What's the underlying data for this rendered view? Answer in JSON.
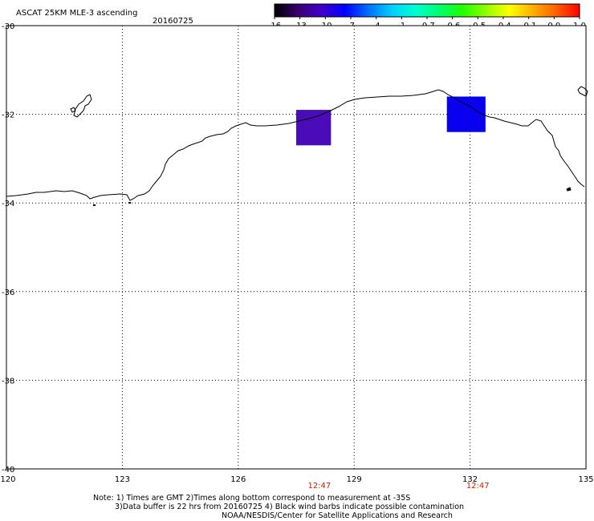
{
  "header": {
    "title": "ASCAT 25KM MLE-3 ascending",
    "date": "20160725"
  },
  "colorbar": {
    "labels": [
      "-16",
      "-13",
      "-10",
      "-7",
      "-4",
      "-1",
      "-0.7",
      "-0.6",
      "-0.5",
      "-0.4",
      "-0.1",
      "0.0",
      "1.0"
    ],
    "stops": [
      "#000000",
      "#3a0070",
      "#4000c8",
      "#0000ff",
      "#0070ff",
      "#00d0ff",
      "#00ffd0",
      "#00ff70",
      "#20ff00",
      "#90ff00",
      "#ffff00",
      "#ffb000",
      "#ff6000",
      "#ff0000"
    ]
  },
  "lat_labels": [
    "-30",
    "-32",
    "-34",
    "-36",
    "-38",
    "-40"
  ],
  "lon_labels": [
    "120",
    "123",
    "126",
    "129",
    "132",
    "135"
  ],
  "times": [
    {
      "label": "12:47",
      "lon": 128.1
    },
    {
      "label": "12:47",
      "lon": 132.2
    }
  ],
  "swath_cells": [
    {
      "lon_min": 127.5,
      "lon_max": 128.4,
      "lat_min": -32.7,
      "lat_max": -31.9,
      "color": "#4a0cb8",
      "value_range": "-13 to -10"
    },
    {
      "lon_min": 131.4,
      "lon_max": 132.4,
      "lat_min": -32.4,
      "lat_max": -31.6,
      "color": "#0a00f0",
      "value_range": "-10 to -7"
    }
  ],
  "footer": {
    "note1": "Note: 1) Times are GMT 2)Times along bottom correspond to measurement at -35S",
    "note2": "3)Data buffer is 22 hrs from 20160725 4) Black wind barbs indicate possible contamination",
    "credit": "NOAA/NESDIS/Center for Satellite Applications and Research"
  }
}
